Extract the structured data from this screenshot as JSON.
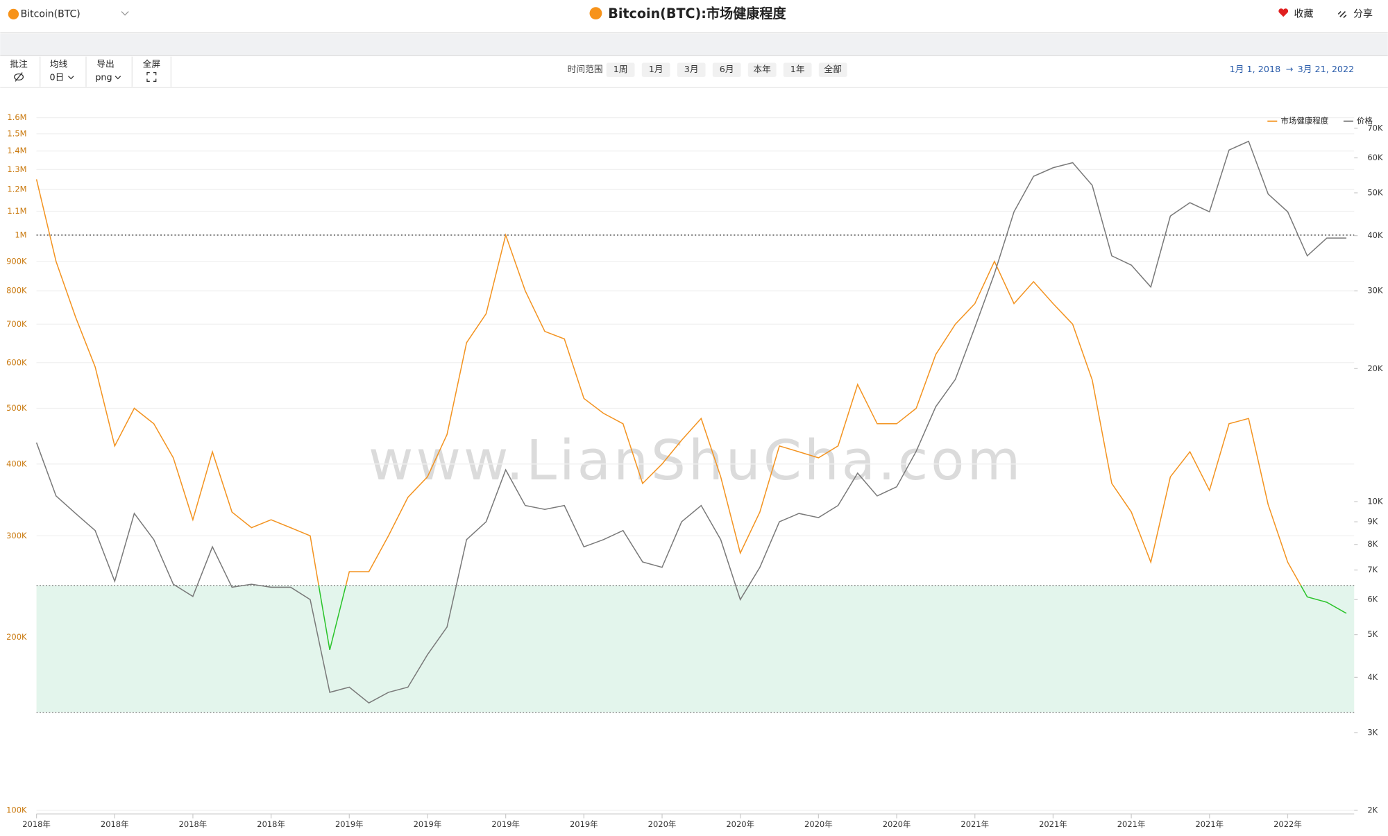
{
  "header": {
    "coin_selector": "Bitcoin(BTC)",
    "title": "Bitcoin(BTC):市场健康程度",
    "favorite": "收藏",
    "share": "分享"
  },
  "toolbar": {
    "tools": [
      {
        "label": "批注"
      },
      {
        "label": "均线",
        "value": "0日"
      },
      {
        "label": "导出",
        "value": "png"
      },
      {
        "label": "全屏"
      }
    ],
    "range_label": "时间范围",
    "ranges": [
      "1周",
      "1月",
      "3月",
      "6月",
      "本年",
      "1年",
      "全部"
    ],
    "date_range": {
      "start": "1月 1, 2018",
      "separator": "→",
      "end": "3月 21, 2022"
    }
  },
  "watermark": "www.LianShuCha.com",
  "chart_data": {
    "type": "line",
    "categories": [
      "2018年",
      null,
      null,
      null,
      "2018年",
      null,
      null,
      null,
      "2018年",
      null,
      null,
      null,
      "2018年",
      null,
      null,
      null,
      "2019年",
      null,
      null,
      null,
      "2019年",
      null,
      null,
      null,
      "2019年",
      null,
      null,
      null,
      "2019年",
      null,
      null,
      null,
      "2020年",
      null,
      null,
      null,
      "2020年",
      null,
      null,
      null,
      "2020年",
      null,
      null,
      null,
      "2020年",
      null,
      null,
      null,
      "2021年",
      null,
      null,
      null,
      "2021年",
      null,
      null,
      null,
      "2021年",
      null,
      null,
      null,
      "2021年",
      null,
      null,
      null,
      "2022年",
      null,
      null,
      null
    ],
    "series": [
      {
        "name": "市场健康程度",
        "color": "#f39422",
        "below_color": "#2bc42b",
        "values": [
          1250000,
          900000,
          720000,
          590000,
          430000,
          500000,
          470000,
          410000,
          320000,
          420000,
          330000,
          310000,
          320000,
          310000,
          300000,
          190000,
          260000,
          260000,
          300000,
          350000,
          380000,
          450000,
          650000,
          730000,
          1000000,
          800000,
          680000,
          660000,
          520000,
          490000,
          470000,
          370000,
          400000,
          440000,
          480000,
          380000,
          280000,
          330000,
          430000,
          420000,
          410000,
          430000,
          550000,
          470000,
          470000,
          500000,
          620000,
          700000,
          760000,
          900000,
          760000,
          830000,
          760000,
          700000,
          560000,
          370000,
          330000,
          270000,
          380000,
          420000,
          360000,
          470000,
          480000,
          340000,
          270000,
          235000,
          230000,
          220000
        ]
      },
      {
        "name": "价格",
        "color": "#7a7a7a",
        "axis": "y2",
        "values": [
          13600,
          10300,
          9400,
          8600,
          6600,
          9400,
          8200,
          6500,
          6100,
          7900,
          6400,
          6500,
          6400,
          6400,
          6000,
          3700,
          3800,
          3500,
          3700,
          3800,
          4500,
          5200,
          8200,
          9000,
          11800,
          9800,
          9600,
          9800,
          7900,
          8200,
          8600,
          7300,
          7100,
          9000,
          9800,
          8200,
          6000,
          7100,
          9000,
          9400,
          9200,
          9800,
          11600,
          10300,
          10800,
          13000,
          16400,
          18900,
          24800,
          32800,
          45300,
          54500,
          57000,
          58500,
          52000,
          36000,
          34300,
          30600,
          44300,
          47500,
          45300,
          62500,
          65400,
          49700,
          45300,
          36000,
          39500,
          39500
        ]
      }
    ],
    "log_scale": true,
    "ylim": [
      100000,
      1600000
    ],
    "yticks": [
      {
        "value": 100000,
        "label": "100K"
      },
      {
        "value": 200000,
        "label": "200K"
      },
      {
        "value": 300000,
        "label": "300K"
      },
      {
        "value": 400000,
        "label": "400K"
      },
      {
        "value": 500000,
        "label": "500K"
      },
      {
        "value": 600000,
        "label": "600K"
      },
      {
        "value": 700000,
        "label": "700K"
      },
      {
        "value": 800000,
        "label": "800K"
      },
      {
        "value": 900000,
        "label": "900K"
      },
      {
        "value": 1000000,
        "label": "1M"
      },
      {
        "value": 1100000,
        "label": "1.1M"
      },
      {
        "value": 1200000,
        "label": "1.2M"
      },
      {
        "value": 1300000,
        "label": "1.3M"
      },
      {
        "value": 1400000,
        "label": "1.4M"
      },
      {
        "value": 1500000,
        "label": "1.5M"
      },
      {
        "value": 1600000,
        "label": "1.6M"
      }
    ],
    "y2lim": [
      2000,
      70000
    ],
    "y2ticks": [
      {
        "value": 2000,
        "label": "2K"
      },
      {
        "value": 3000,
        "label": "3K"
      },
      {
        "value": 4000,
        "label": "4K"
      },
      {
        "value": 5000,
        "label": "5K"
      },
      {
        "value": 6000,
        "label": "6K"
      },
      {
        "value": 7000,
        "label": "7K"
      },
      {
        "value": 8000,
        "label": "8K"
      },
      {
        "value": 9000,
        "label": "9K"
      },
      {
        "value": 10000,
        "label": "10K"
      },
      {
        "value": 20000,
        "label": "20K"
      },
      {
        "value": 30000,
        "label": "30K"
      },
      {
        "value": 40000,
        "label": "40K"
      },
      {
        "value": 50000,
        "label": "50K"
      },
      {
        "value": 60000,
        "label": "60K"
      },
      {
        "value": 70000,
        "label": "70K"
      }
    ],
    "reference_line": 1000000,
    "healthy_zone": [
      148000,
      246000
    ],
    "zone_color": "#e3f5ec",
    "grid": true,
    "legend": "top-right"
  }
}
